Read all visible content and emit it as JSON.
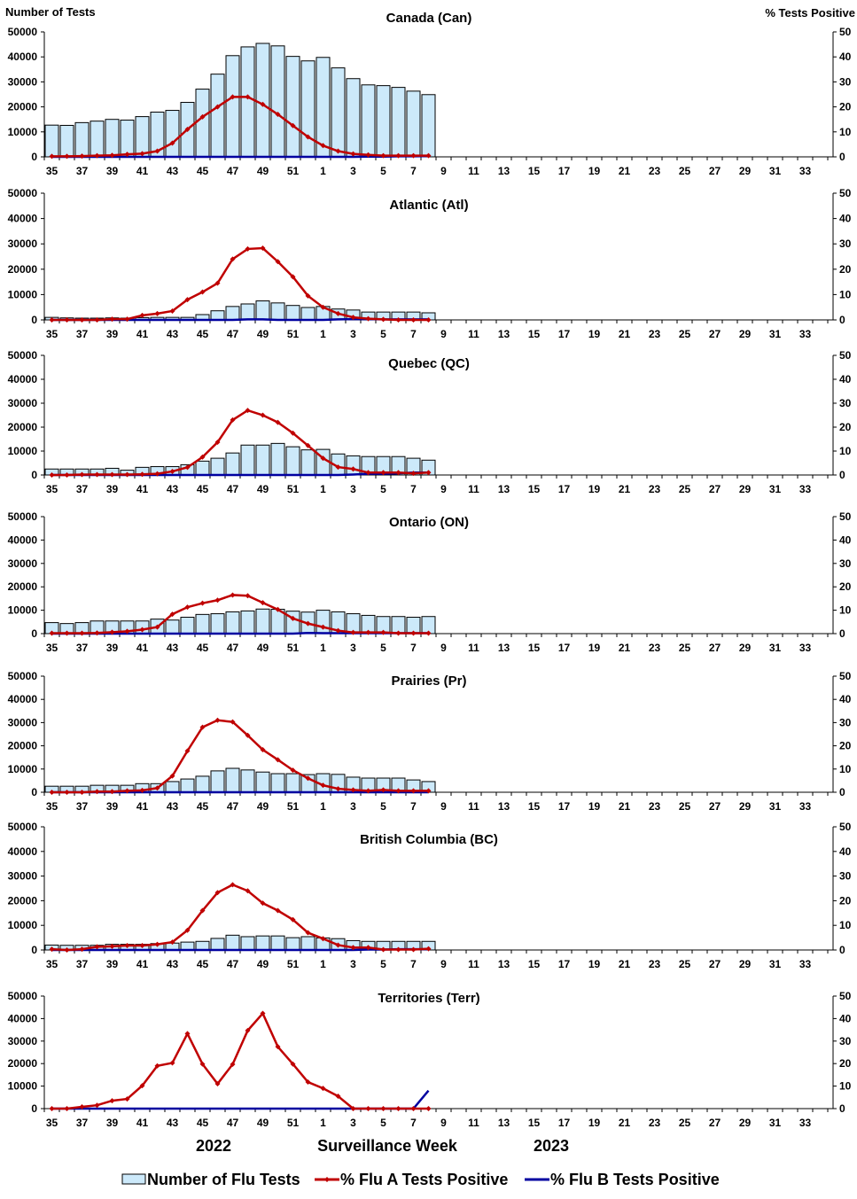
{
  "chart_data": [
    {
      "type": "bar+line",
      "title": "Canada (Can)",
      "left_ylabel": "Number of Tests",
      "right_ylabel": "% Tests Positive",
      "weeks": [
        35,
        36,
        37,
        38,
        39,
        40,
        41,
        42,
        43,
        44,
        45,
        46,
        47,
        48,
        49,
        50,
        51,
        52,
        1,
        2,
        3,
        4,
        5,
        6,
        7,
        8
      ],
      "tests": [
        12700,
        12600,
        13700,
        14300,
        15000,
        14700,
        16100,
        17900,
        18600,
        21800,
        27100,
        33100,
        40500,
        44000,
        45400,
        44400,
        40200,
        38400,
        39800,
        35600,
        31300,
        28800,
        28500,
        27800,
        26300,
        24900
      ],
      "flu_a_pct": [
        0.2,
        0.2,
        0.3,
        0.5,
        0.6,
        1,
        1.3,
        2.3,
        5.5,
        11,
        16,
        20,
        24,
        24,
        21,
        17,
        12.5,
        8,
        4.5,
        2.3,
        1.2,
        0.8,
        0.5,
        0.5,
        0.5,
        0.5
      ],
      "flu_b_pct": [
        0,
        0,
        0,
        0,
        0,
        0,
        0,
        0,
        0,
        0,
        0,
        0,
        0,
        0,
        0,
        0,
        0,
        0,
        0,
        0,
        0,
        0.1,
        0.1,
        0.2,
        0.2,
        0.3
      ]
    },
    {
      "type": "bar+line",
      "title": "Atlantic (Atl)",
      "weeks": [
        35,
        36,
        37,
        38,
        39,
        40,
        41,
        42,
        43,
        44,
        45,
        46,
        47,
        48,
        49,
        50,
        51,
        52,
        1,
        2,
        3,
        4,
        5,
        6,
        7,
        8
      ],
      "tests": [
        1000,
        800,
        700,
        700,
        800,
        700,
        900,
        1000,
        1000,
        1000,
        2100,
        3600,
        5300,
        6300,
        7500,
        6700,
        5700,
        4900,
        5300,
        4300,
        3900,
        3100,
        3100,
        3100,
        3100,
        2800
      ],
      "flu_a_pct": [
        0,
        0,
        0,
        0,
        0.3,
        0.3,
        1.8,
        2.5,
        3.5,
        8,
        11,
        14.5,
        24,
        28,
        28.3,
        23,
        17,
        9.5,
        5,
        2.5,
        1,
        0.5,
        0.2,
        0,
        0,
        0
      ],
      "flu_b_pct": [
        0,
        0,
        0,
        0,
        0,
        0,
        0,
        0,
        0,
        0,
        0,
        0,
        0,
        0.2,
        0.2,
        0,
        0,
        0,
        0,
        0.2,
        0.3,
        0.3,
        0.2,
        0.2,
        0.2,
        0.2
      ]
    },
    {
      "type": "bar+line",
      "title": "Quebec (QC)",
      "weeks": [
        35,
        36,
        37,
        38,
        39,
        40,
        41,
        42,
        43,
        44,
        45,
        46,
        47,
        48,
        49,
        50,
        51,
        52,
        1,
        2,
        3,
        4,
        5,
        6,
        7,
        8
      ],
      "tests": [
        2500,
        2500,
        2500,
        2500,
        2800,
        2000,
        3200,
        3500,
        3500,
        4300,
        5800,
        7000,
        9200,
        12500,
        12500,
        13200,
        11800,
        10500,
        10700,
        8800,
        8000,
        7700,
        7700,
        7700,
        7000,
        6200
      ],
      "flu_a_pct": [
        0,
        0,
        0.2,
        0.2,
        0.2,
        0.2,
        0.3,
        0.5,
        1.5,
        3.2,
        7.5,
        13.7,
        23,
        27,
        25,
        22,
        17.5,
        12.3,
        7,
        3.3,
        2.5,
        1,
        1,
        1,
        0.7,
        1
      ],
      "flu_b_pct": [
        0,
        0,
        0,
        0,
        0,
        0,
        0,
        0,
        0,
        0,
        0,
        0,
        0,
        0,
        0,
        0,
        0,
        0,
        0,
        0,
        0.2,
        0.5,
        0.5,
        0.7,
        1,
        1
      ]
    },
    {
      "type": "bar+line",
      "title": "Ontario (ON)",
      "weeks": [
        35,
        36,
        37,
        38,
        39,
        40,
        41,
        42,
        43,
        44,
        45,
        46,
        47,
        48,
        49,
        50,
        51,
        52,
        1,
        2,
        3,
        4,
        5,
        6,
        7,
        8
      ],
      "tests": [
        4700,
        4300,
        4700,
        5400,
        5400,
        5400,
        5400,
        6200,
        5800,
        7000,
        8200,
        8500,
        9300,
        9700,
        10500,
        10400,
        9600,
        9200,
        10000,
        9300,
        8500,
        7800,
        7300,
        7300,
        7000,
        7300
      ],
      "flu_a_pct": [
        0.2,
        0.2,
        0.2,
        0.3,
        0.6,
        1,
        1.7,
        2.8,
        8.3,
        11.3,
        13,
        14.3,
        16.5,
        16.2,
        13.2,
        10.3,
        6.5,
        4.3,
        2.8,
        1.3,
        0.5,
        0.5,
        0.5,
        0.2,
        0.2,
        0.2
      ],
      "flu_b_pct": [
        0,
        0,
        0,
        0,
        0,
        0,
        0,
        0,
        0,
        0,
        0,
        0,
        0,
        0,
        0,
        0,
        0,
        0.3,
        0.2,
        0.2,
        0.2,
        0.2,
        0.2,
        0.2,
        0.2,
        0.2
      ]
    },
    {
      "type": "bar+line",
      "title": "Prairies (Pr)",
      "weeks": [
        35,
        36,
        37,
        38,
        39,
        40,
        41,
        42,
        43,
        44,
        45,
        46,
        47,
        48,
        49,
        50,
        51,
        52,
        1,
        2,
        3,
        4,
        5,
        6,
        7,
        8
      ],
      "tests": [
        2600,
        2600,
        2600,
        3000,
        3000,
        3000,
        3700,
        3700,
        4600,
        5700,
        6900,
        9200,
        10300,
        9600,
        8700,
        8000,
        8000,
        7600,
        8000,
        7700,
        6500,
        6100,
        6100,
        6100,
        5300,
        4600
      ],
      "flu_a_pct": [
        0,
        0,
        0,
        0.3,
        0.3,
        0.6,
        0.8,
        1.8,
        7,
        17.8,
        28,
        31,
        30.3,
        24.5,
        18.3,
        14,
        9.5,
        6,
        3,
        1.5,
        1,
        0.6,
        1,
        0.6,
        0.6,
        0.6
      ],
      "flu_b_pct": [
        0,
        0,
        0,
        0,
        0,
        0,
        0,
        0,
        0,
        0,
        0,
        0,
        0,
        0,
        0,
        0,
        0,
        0,
        0,
        0,
        0,
        0,
        0,
        0,
        0,
        0
      ]
    },
    {
      "type": "bar+line",
      "title": "British Columbia (BC)",
      "weeks": [
        35,
        36,
        37,
        38,
        39,
        40,
        41,
        42,
        43,
        44,
        45,
        46,
        47,
        48,
        49,
        50,
        51,
        52,
        1,
        2,
        3,
        4,
        5,
        6,
        7,
        8
      ],
      "tests": [
        2000,
        1900,
        1900,
        1900,
        2300,
        2300,
        2300,
        2600,
        2800,
        3200,
        3500,
        4700,
        6000,
        5400,
        5700,
        5700,
        5000,
        5400,
        4900,
        4600,
        3800,
        3500,
        3500,
        3500,
        3500,
        3500
      ],
      "flu_a_pct": [
        0.3,
        0,
        0.3,
        1.3,
        1.5,
        1.8,
        1.8,
        2.3,
        3.2,
        8,
        16,
        23.3,
        26.5,
        24,
        19,
        16,
        12.3,
        7,
        4.6,
        2,
        1,
        1,
        0.2,
        0.2,
        0.2,
        0.5
      ],
      "flu_b_pct": [
        0,
        0,
        0,
        0,
        0,
        0,
        0,
        0,
        0,
        0,
        0,
        0,
        0,
        0,
        0,
        0,
        0,
        0,
        0,
        0,
        0,
        0.2,
        0.2,
        0.3,
        0.3,
        0.3
      ]
    },
    {
      "type": "bar+line",
      "title": "Territories (Terr)",
      "weeks": [
        35,
        36,
        37,
        38,
        39,
        40,
        41,
        42,
        43,
        44,
        45,
        46,
        47,
        48,
        49,
        50,
        51,
        52,
        1,
        2,
        3,
        4,
        5,
        6,
        7,
        8
      ],
      "tests": [
        0,
        0,
        0,
        0,
        0,
        0,
        0,
        0,
        0,
        0,
        0,
        0,
        0,
        0,
        0,
        0,
        0,
        0,
        0,
        0,
        0,
        0,
        0,
        0,
        0,
        0
      ],
      "flu_a_pct": [
        0,
        0,
        0.8,
        1.5,
        3.5,
        4.3,
        10.2,
        19,
        20.3,
        33.3,
        19.8,
        11,
        19.7,
        34.7,
        42.3,
        27.5,
        19.8,
        11.8,
        9,
        5.5,
        0,
        0,
        0,
        0,
        0,
        0
      ],
      "flu_b_pct": [
        0,
        0,
        0,
        0,
        0,
        0,
        0,
        0,
        0,
        0,
        0,
        0,
        0,
        0,
        0,
        0,
        0,
        0,
        0,
        0,
        0,
        0,
        0,
        0,
        0,
        8
      ]
    }
  ],
  "axes": {
    "x_weeks": [
      35,
      36,
      37,
      38,
      39,
      40,
      41,
      42,
      43,
      44,
      45,
      46,
      47,
      48,
      49,
      50,
      51,
      52,
      1,
      2,
      3,
      4,
      5,
      6,
      7,
      8,
      9,
      10,
      11,
      12,
      13,
      14,
      15,
      16,
      17,
      18,
      19,
      20,
      21,
      22,
      23,
      24,
      25,
      26,
      27,
      28,
      29,
      30,
      31,
      32,
      33,
      34
    ],
    "x_tick_labels": [
      "35",
      "37",
      "39",
      "41",
      "43",
      "45",
      "47",
      "49",
      "51",
      "1",
      "3",
      "5",
      "7",
      "9",
      "11",
      "13",
      "15",
      "17",
      "19",
      "21",
      "23",
      "25",
      "27",
      "29",
      "31",
      "33"
    ],
    "left_ylim": [
      0,
      50000
    ],
    "left_ticks": [
      "0",
      "10000",
      "20000",
      "30000",
      "40000",
      "50000"
    ],
    "right_ylim": [
      0,
      50
    ],
    "right_ticks": [
      "0",
      "10",
      "20",
      "30",
      "40",
      "50"
    ],
    "xlabel": "Surveillance Week",
    "year_left": "2022",
    "year_right": "2023"
  },
  "legend": {
    "placement": "bottom",
    "items": [
      "Number of Flu Tests",
      "% Flu A Tests Positive",
      "% Flu B Tests Positive"
    ]
  },
  "colors": {
    "bar_fill": "#cce9fa",
    "bar_stroke": "#000000",
    "flu_a": "#c00000",
    "flu_b": "#0000a0"
  }
}
